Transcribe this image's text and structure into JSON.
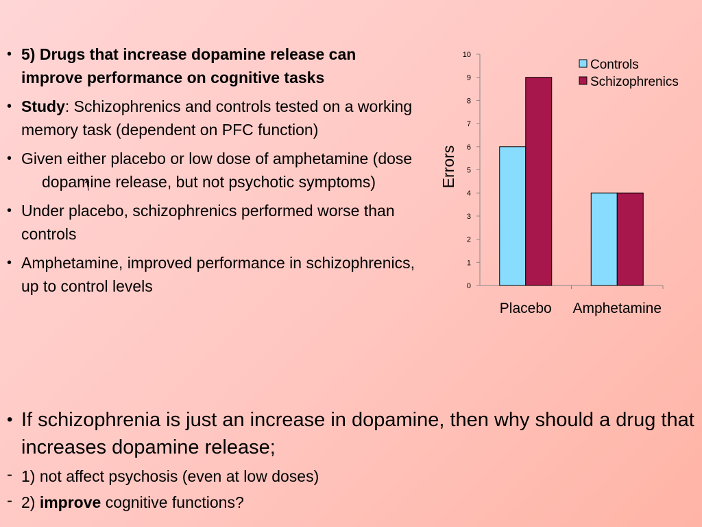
{
  "bullets": {
    "b1": "5) Drugs that increase dopamine release can improve performance on cognitive tasks",
    "b2_bold": "Study",
    "b2_rest": ": Schizophrenics and controls tested on a working memory task (dependent on PFC function)",
    "b3_part1": "Given either placebo or low dose of amphetamine (dose",
    "b3_part2": "dopamine release, but not psychotic symptoms)",
    "b3_arrow": "↑",
    "b4": "Under placebo, schizophrenics performed worse than controls",
    "b5": "Amphetamine, improved performance in schizophrenics, up to control levels"
  },
  "bottom": {
    "question": "If schizophrenia is just an increase in dopamine, then why should a drug that increases dopamine release;",
    "sub1": "1) not affect psychosis (even at low doses)",
    "sub2_pre": "2) ",
    "sub2_bold": "improve",
    "sub2_post": " cognitive functions?"
  },
  "chart_data": {
    "type": "bar",
    "categories": [
      "Placebo",
      "Amphetamine"
    ],
    "series": [
      {
        "name": "Controls",
        "values": [
          6,
          4
        ],
        "color": "#88ddff"
      },
      {
        "name": "Schizophrenics",
        "values": [
          9,
          4
        ],
        "color": "#a8174b"
      }
    ],
    "ylabel": "Errors",
    "ylim": [
      0,
      10
    ],
    "yticks": [
      "0",
      "1",
      "2",
      "3",
      "4",
      "5",
      "6",
      "7",
      "8",
      "9",
      "10"
    ],
    "legend": "top-right",
    "grid": false
  }
}
